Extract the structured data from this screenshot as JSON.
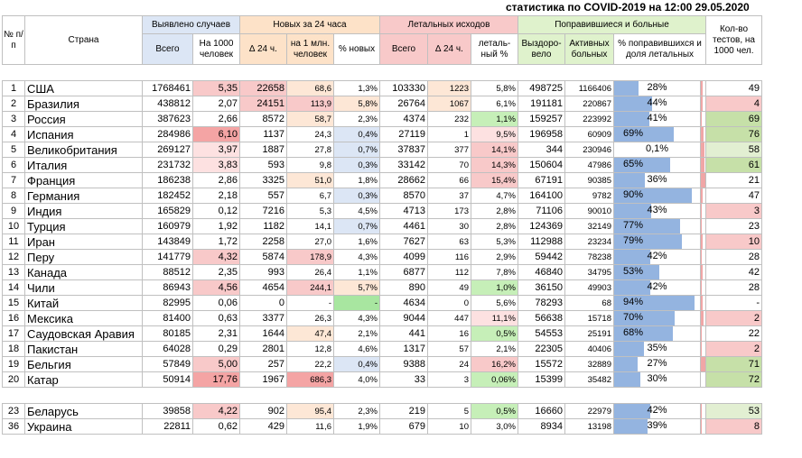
{
  "title": "статистика по COVID-2019 на 12:00 29.05.2020",
  "headers": {
    "num": "№ п/п",
    "country": "Страна",
    "g_detected": "Выявлено случаев",
    "g_new": "Новых за 24 часа",
    "g_deaths": "Летальных исходов",
    "g_recovered": "Поправившиеся и больные",
    "tests": "Кол-во тестов, на 1000 чел.",
    "total": "Всего",
    "per1000": "На 1000 человек",
    "d24": "∆ 24 ч.",
    "per1m": "на 1 млн. человек",
    "pct_new": "% новых",
    "deaths_total": "Всего",
    "deaths_d24": "∆ 24 ч.",
    "lethal_pct": "леталь-ный %",
    "recovered": "Выздоро-вело",
    "active": "Активных больных",
    "pct_recovered": "% поправившихся и доля летальных"
  },
  "colors": {
    "blue_bar": "#94b4e0",
    "red_bar": "#f0a6a6",
    "green": "#dff2cc",
    "red": "#f8c9c9",
    "orange": "#fde2c8"
  },
  "rows": [
    {
      "num": "1",
      "country": "США",
      "total": "1768461",
      "per1000": "5,35",
      "d24": "22658",
      "per1m": "68,6",
      "pct_new": "1,3%",
      "deaths": "103330",
      "deaths_d24": "1223",
      "lethal": "5,8%",
      "recovered": "498725",
      "active": "1166406",
      "pct_rec": "28%",
      "rec_frac": 0.28,
      "death_frac": 0.06,
      "tests": "49"
    },
    {
      "num": "2",
      "country": "Бразилия",
      "total": "438812",
      "per1000": "2,07",
      "d24": "24151",
      "per1m": "113,9",
      "pct_new": "5,8%",
      "deaths": "26764",
      "deaths_d24": "1067",
      "lethal": "6,1%",
      "recovered": "191181",
      "active": "220867",
      "pct_rec": "44%",
      "rec_frac": 0.44,
      "death_frac": 0.06,
      "tests": "4"
    },
    {
      "num": "3",
      "country": "Россия",
      "total": "387623",
      "per1000": "2,66",
      "d24": "8572",
      "per1m": "58,7",
      "pct_new": "2,3%",
      "deaths": "4374",
      "deaths_d24": "232",
      "lethal": "1,1%",
      "recovered": "159257",
      "active": "223992",
      "pct_rec": "41%",
      "rec_frac": 0.41,
      "death_frac": 0.01,
      "tests": "69"
    },
    {
      "num": "4",
      "country": "Испания",
      "total": "284986",
      "per1000": "6,10",
      "d24": "1137",
      "per1m": "24,3",
      "pct_new": "0,4%",
      "deaths": "27119",
      "deaths_d24": "1",
      "lethal": "9,5%",
      "recovered": "196958",
      "active": "60909",
      "pct_rec": "69%",
      "rec_frac": 0.69,
      "death_frac": 0.1,
      "tests": "76"
    },
    {
      "num": "5",
      "country": "Великобритания",
      "total": "269127",
      "per1000": "3,97",
      "d24": "1887",
      "per1m": "27,8",
      "pct_new": "0,7%",
      "deaths": "37837",
      "deaths_d24": "377",
      "lethal": "14,1%",
      "recovered": "344",
      "active": "230946",
      "pct_rec": "0,1%",
      "rec_frac": 0.0,
      "death_frac": 0.14,
      "tests": "58"
    },
    {
      "num": "6",
      "country": "Италия",
      "total": "231732",
      "per1000": "3,83",
      "d24": "593",
      "per1m": "9,8",
      "pct_new": "0,3%",
      "deaths": "33142",
      "deaths_d24": "70",
      "lethal": "14,3%",
      "recovered": "150604",
      "active": "47986",
      "pct_rec": "65%",
      "rec_frac": 0.65,
      "death_frac": 0.14,
      "tests": "61"
    },
    {
      "num": "7",
      "country": "Франция",
      "total": "186238",
      "per1000": "2,86",
      "d24": "3325",
      "per1m": "51,0",
      "pct_new": "1,8%",
      "deaths": "28662",
      "deaths_d24": "66",
      "lethal": "15,4%",
      "recovered": "67191",
      "active": "90385",
      "pct_rec": "36%",
      "rec_frac": 0.36,
      "death_frac": 0.15,
      "tests": "21"
    },
    {
      "num": "8",
      "country": "Германия",
      "total": "182452",
      "per1000": "2,18",
      "d24": "557",
      "per1m": "6,7",
      "pct_new": "0,3%",
      "deaths": "8570",
      "deaths_d24": "37",
      "lethal": "4,7%",
      "recovered": "164100",
      "active": "9782",
      "pct_rec": "90%",
      "rec_frac": 0.9,
      "death_frac": 0.05,
      "tests": "47"
    },
    {
      "num": "9",
      "country": "Индия",
      "total": "165829",
      "per1000": "0,12",
      "d24": "7216",
      "per1m": "5,3",
      "pct_new": "4,5%",
      "deaths": "4713",
      "deaths_d24": "173",
      "lethal": "2,8%",
      "recovered": "71106",
      "active": "90010",
      "pct_rec": "43%",
      "rec_frac": 0.43,
      "death_frac": 0.03,
      "tests": "3"
    },
    {
      "num": "10",
      "country": "Турция",
      "total": "160979",
      "per1000": "1,92",
      "d24": "1182",
      "per1m": "14,1",
      "pct_new": "0,7%",
      "deaths": "4461",
      "deaths_d24": "30",
      "lethal": "2,8%",
      "recovered": "124369",
      "active": "32149",
      "pct_rec": "77%",
      "rec_frac": 0.77,
      "death_frac": 0.03,
      "tests": "23"
    },
    {
      "num": "11",
      "country": "Иран",
      "total": "143849",
      "per1000": "1,72",
      "d24": "2258",
      "per1m": "27,0",
      "pct_new": "1,6%",
      "deaths": "7627",
      "deaths_d24": "63",
      "lethal": "5,3%",
      "recovered": "112988",
      "active": "23234",
      "pct_rec": "79%",
      "rec_frac": 0.79,
      "death_frac": 0.05,
      "tests": "10"
    },
    {
      "num": "12",
      "country": "Перу",
      "total": "141779",
      "per1000": "4,32",
      "d24": "5874",
      "per1m": "178,9",
      "pct_new": "4,3%",
      "deaths": "4099",
      "deaths_d24": "116",
      "lethal": "2,9%",
      "recovered": "59442",
      "active": "78238",
      "pct_rec": "42%",
      "rec_frac": 0.42,
      "death_frac": 0.03,
      "tests": "28"
    },
    {
      "num": "13",
      "country": "Канада",
      "total": "88512",
      "per1000": "2,35",
      "d24": "993",
      "per1m": "26,4",
      "pct_new": "1,1%",
      "deaths": "6877",
      "deaths_d24": "112",
      "lethal": "7,8%",
      "recovered": "46840",
      "active": "34795",
      "pct_rec": "53%",
      "rec_frac": 0.53,
      "death_frac": 0.08,
      "tests": "42"
    },
    {
      "num": "14",
      "country": "Чили",
      "total": "86943",
      "per1000": "4,56",
      "d24": "4654",
      "per1m": "244,1",
      "pct_new": "5,7%",
      "deaths": "890",
      "deaths_d24": "49",
      "lethal": "1,0%",
      "recovered": "36150",
      "active": "49903",
      "pct_rec": "42%",
      "rec_frac": 0.42,
      "death_frac": 0.01,
      "tests": "28"
    },
    {
      "num": "15",
      "country": "Китай",
      "total": "82995",
      "per1000": "0,06",
      "d24": "0",
      "per1m": "-",
      "pct_new": "-",
      "deaths": "4634",
      "deaths_d24": "0",
      "lethal": "5,6%",
      "recovered": "78293",
      "active": "68",
      "pct_rec": "94%",
      "rec_frac": 0.94,
      "death_frac": 0.06,
      "tests": "-"
    },
    {
      "num": "16",
      "country": "Мексика",
      "total": "81400",
      "per1000": "0,63",
      "d24": "3377",
      "per1m": "26,3",
      "pct_new": "4,3%",
      "deaths": "9044",
      "deaths_d24": "447",
      "lethal": "11,1%",
      "recovered": "56638",
      "active": "15718",
      "pct_rec": "70%",
      "rec_frac": 0.7,
      "death_frac": 0.11,
      "tests": "2"
    },
    {
      "num": "17",
      "country": "Саудовская Аравия",
      "total": "80185",
      "per1000": "2,31",
      "d24": "1644",
      "per1m": "47,4",
      "pct_new": "2,1%",
      "deaths": "441",
      "deaths_d24": "16",
      "lethal": "0,5%",
      "recovered": "54553",
      "active": "25191",
      "pct_rec": "68%",
      "rec_frac": 0.68,
      "death_frac": 0.005,
      "tests": "22"
    },
    {
      "num": "18",
      "country": "Пакистан",
      "total": "64028",
      "per1000": "0,29",
      "d24": "2801",
      "per1m": "12,8",
      "pct_new": "4,6%",
      "deaths": "1317",
      "deaths_d24": "57",
      "lethal": "2,1%",
      "recovered": "22305",
      "active": "40406",
      "pct_rec": "35%",
      "rec_frac": 0.35,
      "death_frac": 0.02,
      "tests": "2"
    },
    {
      "num": "19",
      "country": "Бельгия",
      "total": "57849",
      "per1000": "5,00",
      "d24": "257",
      "per1m": "22,2",
      "pct_new": "0,4%",
      "deaths": "9388",
      "deaths_d24": "24",
      "lethal": "16,2%",
      "recovered": "15572",
      "active": "32889",
      "pct_rec": "27%",
      "rec_frac": 0.27,
      "death_frac": 0.16,
      "tests": "71"
    },
    {
      "num": "20",
      "country": "Катар",
      "total": "50914",
      "per1000": "17,76",
      "d24": "1967",
      "per1m": "686,3",
      "pct_new": "4,0%",
      "deaths": "33",
      "deaths_d24": "3",
      "lethal": "0,06%",
      "recovered": "15399",
      "active": "35482",
      "pct_rec": "30%",
      "rec_frac": 0.3,
      "death_frac": 0.001,
      "tests": "72"
    }
  ],
  "extra_rows": [
    {
      "num": "23",
      "country": "Беларусь",
      "total": "39858",
      "per1000": "4,22",
      "d24": "902",
      "per1m": "95,4",
      "pct_new": "2,3%",
      "deaths": "219",
      "deaths_d24": "5",
      "lethal": "0,5%",
      "recovered": "16660",
      "active": "22979",
      "pct_rec": "42%",
      "rec_frac": 0.42,
      "death_frac": 0.005,
      "tests": "53"
    },
    {
      "num": "36",
      "country": "Украина",
      "total": "22811",
      "per1000": "0,62",
      "d24": "429",
      "per1m": "11,6",
      "pct_new": "1,9%",
      "deaths": "679",
      "deaths_d24": "10",
      "lethal": "3,0%",
      "recovered": "8934",
      "active": "13198",
      "pct_rec": "39%",
      "rec_frac": 0.39,
      "death_frac": 0.03,
      "tests": "8"
    }
  ]
}
